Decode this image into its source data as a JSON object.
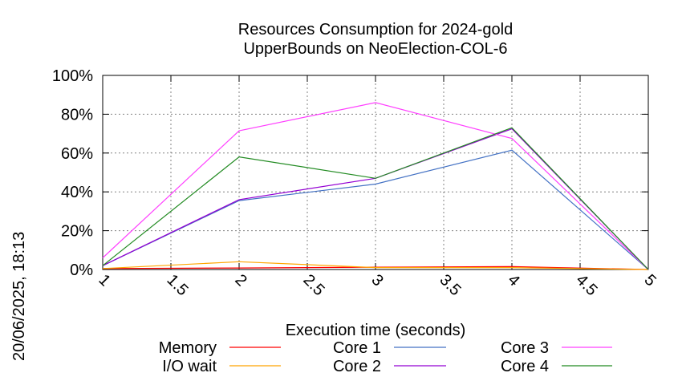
{
  "chart_data": {
    "type": "line",
    "title": [
      "Resources Consumption for 2024-gold",
      "UpperBounds on NeoElection-COL-6"
    ],
    "xlabel": "Execution time (seconds)",
    "ylabel": "",
    "side_label": "20/06/2025, 18:13",
    "xlim": [
      1,
      5
    ],
    "ylim": [
      0,
      100
    ],
    "x_ticks": [
      "1",
      "1.5",
      "2",
      "2.5",
      "3",
      "3.5",
      "4",
      "4.5",
      "5"
    ],
    "y_ticks": [
      "0%",
      "20%",
      "40%",
      "60%",
      "80%",
      "100%"
    ],
    "grid": true,
    "series": [
      {
        "name": "Memory",
        "color": "#ff0000",
        "x": [
          1,
          2,
          3,
          4,
          5
        ],
        "y": [
          0.5,
          0.8,
          1.2,
          1.5,
          0
        ]
      },
      {
        "name": "I/O wait",
        "color": "#ffa500",
        "x": [
          1,
          2,
          3,
          4,
          5
        ],
        "y": [
          0.5,
          4,
          1,
          1,
          0
        ]
      },
      {
        "name": "Core 1",
        "color": "#4472c4",
        "x": [
          1,
          2,
          3,
          4,
          5
        ],
        "y": [
          2,
          35.5,
          44,
          61.5,
          0
        ]
      },
      {
        "name": "Core 2",
        "color": "#9400d3",
        "x": [
          1,
          2,
          3,
          4,
          5
        ],
        "y": [
          2,
          36,
          47,
          72.5,
          0
        ]
      },
      {
        "name": "Core 3",
        "color": "#ff40ff",
        "x": [
          1,
          2,
          3,
          4,
          5
        ],
        "y": [
          6,
          71.5,
          86,
          67.5,
          0
        ]
      },
      {
        "name": "Core 4",
        "color": "#228b22",
        "x": [
          1,
          2,
          3,
          4,
          5
        ],
        "y": [
          2,
          58,
          47,
          73,
          0
        ]
      }
    ]
  }
}
